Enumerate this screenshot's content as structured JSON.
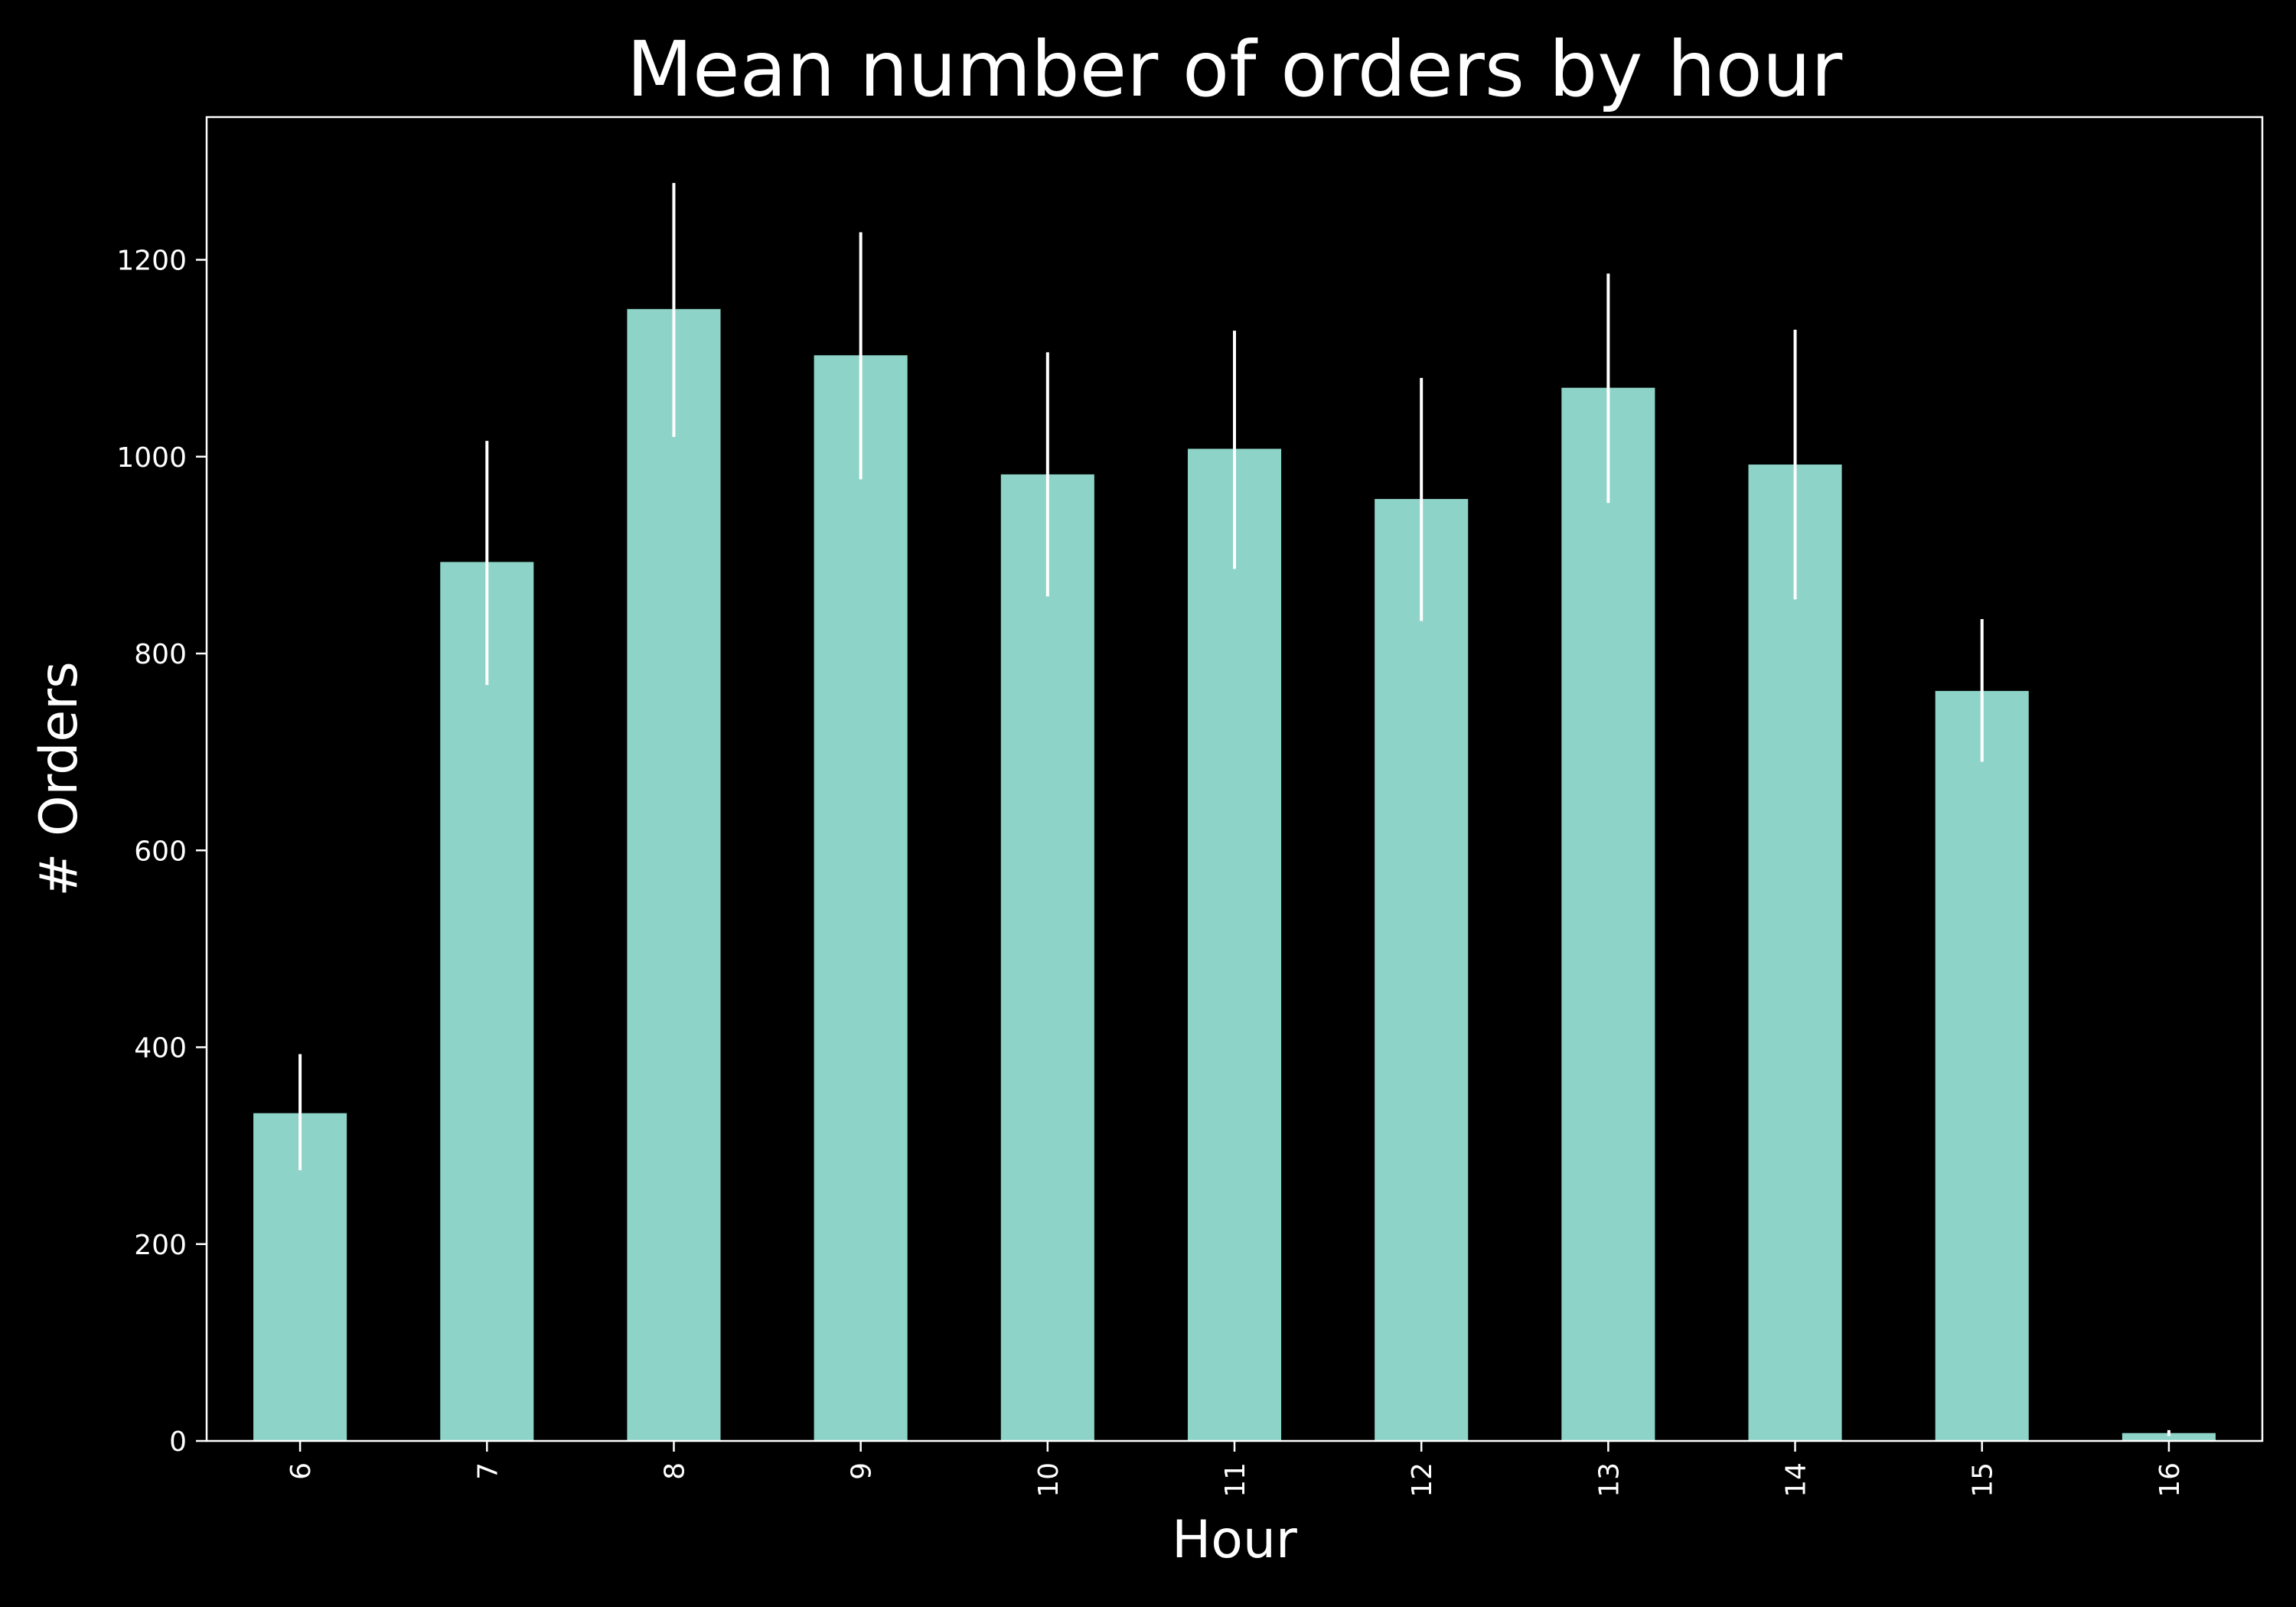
{
  "colors": {
    "background": "#000000",
    "bar": "#8dd3c7",
    "axes": "#ffffff",
    "error_bar": "#ffffff",
    "text": "#ffffff"
  },
  "chart_data": {
    "type": "bar",
    "title": "Mean number of orders by hour",
    "xlabel": "Hour",
    "ylabel": "# Orders",
    "categories": [
      "6",
      "7",
      "8",
      "9",
      "10",
      "11",
      "12",
      "13",
      "14",
      "15",
      "16"
    ],
    "values": [
      333,
      893,
      1150,
      1103,
      982,
      1008,
      957,
      1070,
      992,
      762,
      8
    ],
    "error_low": [
      275,
      768,
      1020,
      977,
      858,
      886,
      833,
      953,
      855,
      690,
      5
    ],
    "error_high": [
      393,
      1016,
      1278,
      1228,
      1106,
      1128,
      1080,
      1186,
      1129,
      835,
      11
    ],
    "ylim": [
      0,
      1345
    ],
    "yticks": [
      0,
      200,
      400,
      600,
      800,
      1000,
      1200
    ],
    "ytick_labels": [
      "0",
      "200",
      "400",
      "600",
      "800",
      "1000",
      "1200"
    ],
    "xtick_rotation": "vertical",
    "grid": false,
    "legend": "none"
  }
}
